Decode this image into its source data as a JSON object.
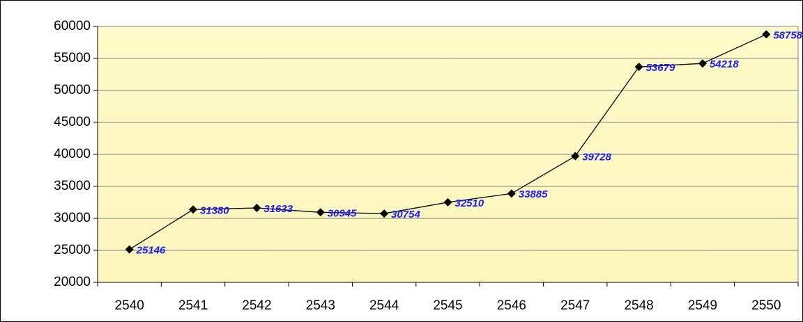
{
  "chart_data": {
    "type": "line",
    "categories": [
      "2540",
      "2541",
      "2542",
      "2543",
      "2544",
      "2545",
      "2546",
      "2547",
      "2548",
      "2549",
      "2550"
    ],
    "series": [
      {
        "color": "#000000",
        "values": [
          25146,
          31380,
          31633,
          30945,
          30754,
          32510,
          33885,
          39728,
          53679,
          54218,
          58758
        ]
      }
    ],
    "label_color": "#1a1aff",
    "ylim": [
      20000,
      60000
    ],
    "yticks": [
      20000,
      25000,
      30000,
      35000,
      40000,
      45000,
      50000,
      55000,
      60000
    ],
    "grid": true
  }
}
